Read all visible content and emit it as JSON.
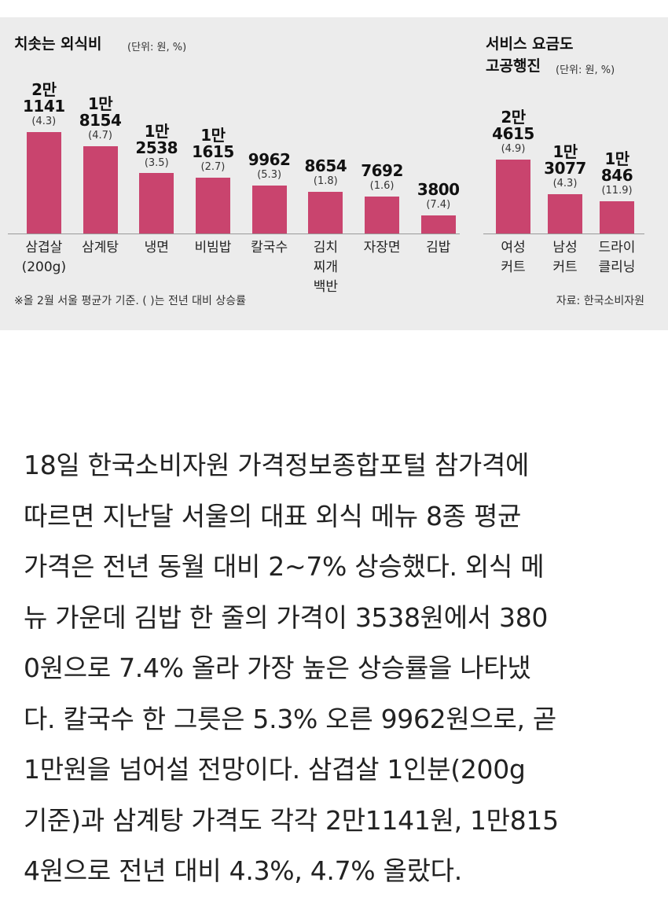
{
  "chart_data": [
    {
      "type": "bar",
      "title": "치솟는 외식비",
      "unit": "(단위: 원, %)",
      "categories": [
        "삼겹살\n(200g)",
        "삼계탕",
        "냉면",
        "비빔밥",
        "칼국수",
        "김치\n찌개\n백반",
        "자장면",
        "김밥"
      ],
      "values": [
        21141,
        18154,
        12538,
        11615,
        9962,
        8654,
        7692,
        3800
      ],
      "value_labels": [
        "2만\n1141",
        "1만\n8154",
        "1만\n2538",
        "1만\n1615",
        "9962",
        "8654",
        "7692",
        "3800"
      ],
      "changes": [
        "(4.3)",
        "(4.7)",
        "(3.5)",
        "(2.7)",
        "(5.3)",
        "(1.8)",
        "(1.6)",
        "(7.4)"
      ],
      "color": "#c9446e",
      "note": "※올 2월 서울 평균가 기준. ( )는 전년 대비 상승률"
    },
    {
      "type": "bar",
      "title": "서비스 요금도\n고공행진",
      "unit": "(단위: 원, %)",
      "categories": [
        "여성\n커트",
        "남성\n커트",
        "드라이\n클리닝"
      ],
      "values": [
        24615,
        13077,
        10846
      ],
      "value_labels": [
        "2만\n4615",
        "1만\n3077",
        "1만\n846"
      ],
      "changes": [
        "(4.9)",
        "(4.3)",
        "(11.9)"
      ],
      "color": "#c9446e",
      "source": "자료: 한국소비자원"
    }
  ],
  "article": {
    "lines": [
      "18일 한국소비자원 가격정보종합포털 참가격에",
      "따르면 지난달 서울의 대표 외식 메뉴 8종 평균",
      "가격은 전년 동월 대비 2~7% 상승했다. 외식 메",
      "뉴 가운데 김밥 한 줄의 가격이 3538원에서 380",
      "0원으로 7.4% 올라 가장 높은 상승률을 나타냈",
      "다. 칼국수 한 그릇은 5.3% 오른 9962원으로, 곧",
      "1만원을 넘어설 전망이다. 삼겹살 1인분(200g",
      "기준)과 삼계탕 가격도 각각 2만1141원, 1만815",
      "4원으로 전년 대비 4.3%, 4.7% 올랐다."
    ]
  }
}
